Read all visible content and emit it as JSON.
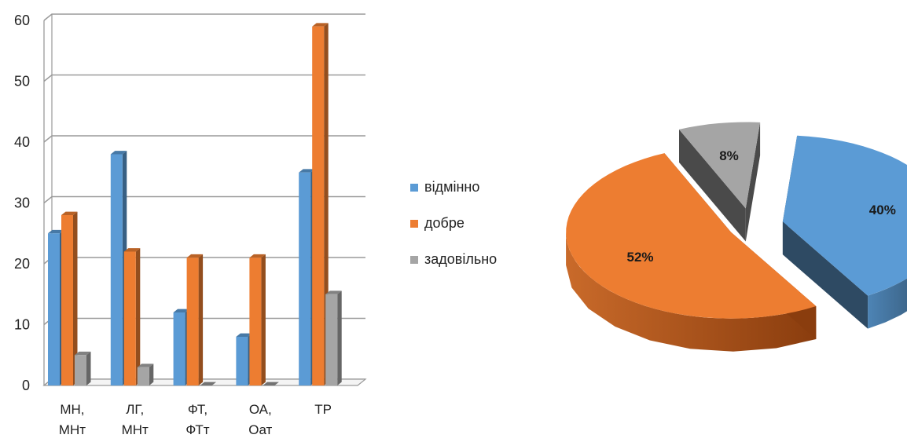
{
  "chart_data": [
    {
      "type": "bar",
      "three_d": true,
      "categories": [
        [
          "МН,",
          "МНт"
        ],
        [
          "ЛГ,",
          "МНт"
        ],
        [
          "ФТ,",
          "ФТт"
        ],
        [
          "ОА,",
          "Оат"
        ],
        [
          "ТР"
        ]
      ],
      "series": [
        {
          "name": "відмінно",
          "values": [
            25,
            38,
            12,
            8,
            35
          ],
          "color": "#5b9bd5"
        },
        {
          "name": "добре",
          "values": [
            28,
            22,
            21,
            21,
            59
          ],
          "color": "#ed7d31"
        },
        {
          "name": "задовільно",
          "values": [
            5,
            3,
            0,
            0,
            15
          ],
          "color": "#a5a5a5"
        }
      ],
      "ylim": [
        0,
        60
      ],
      "yticks": [
        0,
        10,
        20,
        30,
        40,
        50,
        60
      ],
      "grid": true,
      "legend": "right"
    },
    {
      "type": "pie",
      "three_d": true,
      "exploded": true,
      "slices": [
        {
          "label": "40%",
          "value": 40,
          "color": "#5b9bd5",
          "dark": "#2e4a63"
        },
        {
          "label": "52%",
          "value": 52,
          "color": "#ed7d31",
          "dark": "#8a3d0e"
        },
        {
          "label": "8%",
          "value": 8,
          "color": "#a5a5a5",
          "dark": "#4a4a4a"
        }
      ]
    }
  ]
}
